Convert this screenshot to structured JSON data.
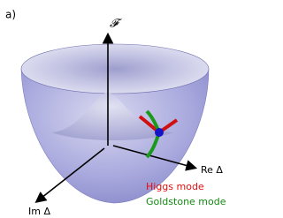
{
  "panel_label": "a)",
  "axes": {
    "vertical": "𝓕",
    "real": "Re Δ",
    "imaginary": "Im Δ"
  },
  "legend": {
    "higgs": "Higgs mode",
    "goldstone": "Goldstone mode"
  }
}
